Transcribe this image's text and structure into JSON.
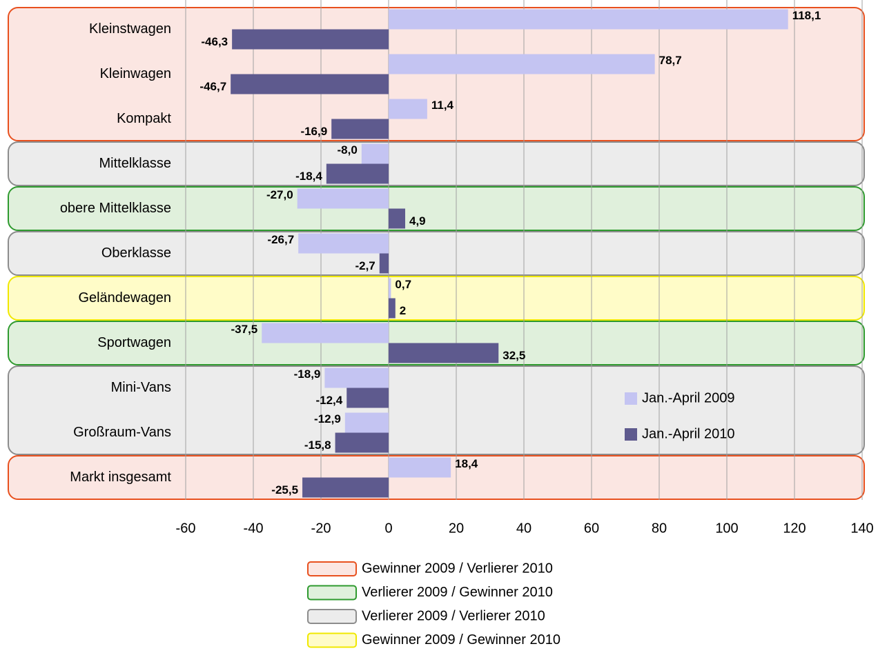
{
  "chart_data": {
    "type": "hbar",
    "categories": [
      "Kleinstwagen",
      "Kleinwagen",
      "Kompakt",
      "Mittelklasse",
      "obere Mittelklasse",
      "Oberklasse",
      "Geländewagen",
      "Sportwagen",
      "Mini-Vans",
      "Großraum-Vans",
      "Markt insgesamt"
    ],
    "series": [
      {
        "name": "Jan.-April 2009",
        "color": "#c4c4f2",
        "values": [
          118.1,
          78.7,
          11.4,
          -8.0,
          -27.0,
          -26.7,
          0.7,
          -37.5,
          -18.9,
          -12.9,
          18.4
        ],
        "value_labels": [
          "118,1",
          "78,7",
          "11,4",
          "-8,0",
          "-27,0",
          "-26,7",
          "0,7",
          "-37,5",
          "-18,9",
          "-12,9",
          "18,4"
        ]
      },
      {
        "name": "Jan.-April 2010",
        "color": "#5e5a8e",
        "values": [
          -46.3,
          -46.7,
          -16.9,
          -18.4,
          4.9,
          -2.7,
          2,
          32.5,
          -12.4,
          -15.8,
          -25.5
        ],
        "value_labels": [
          "-46,3",
          "-46,7",
          "-16,9",
          "-18,4",
          "4,9",
          "-2,7",
          "2",
          "32,5",
          "-12,4",
          "-15,8",
          "-25,5"
        ]
      }
    ],
    "xlim": [
      -60,
      140
    ],
    "xticks": [
      -60,
      -40,
      -20,
      0,
      20,
      40,
      60,
      80,
      100,
      120,
      140
    ],
    "grid": true,
    "groups": [
      {
        "name": "Gewinner 2009 / Verlierer 2010",
        "color": "#e8501e",
        "fill": "#fbe6e2"
      },
      {
        "name": "Verlierer 2009 / Gewinner 2010",
        "color": "#2e9a2e",
        "fill": "#e0f0dc"
      },
      {
        "name": "Verlierer 2009 / Verlierer 2010",
        "color": "#8c8c8c",
        "fill": "#ececec"
      },
      {
        "name": "Gewinner 2009 / Gewinner 2010",
        "color": "#f0e800",
        "fill": "#fffcc8"
      }
    ],
    "category_groups": [
      0,
      0,
      0,
      2,
      1,
      2,
      3,
      1,
      2,
      2,
      0
    ]
  }
}
